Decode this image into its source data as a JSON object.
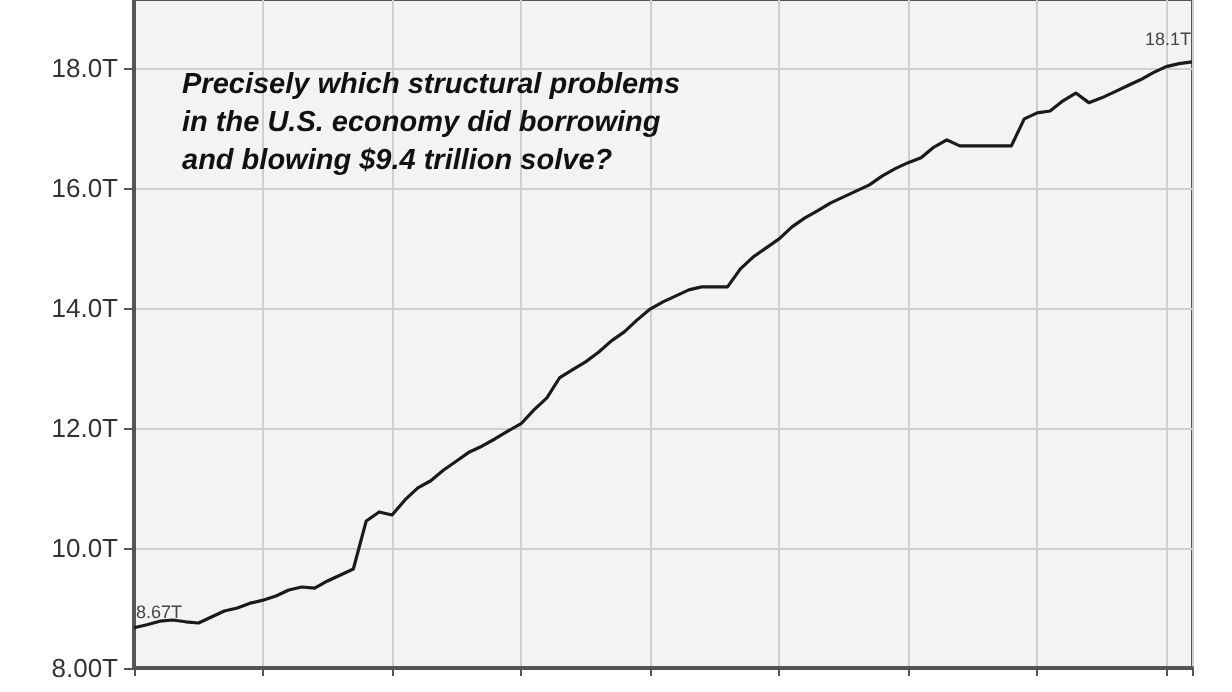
{
  "chart_data": {
    "type": "line",
    "title": "Precisely which structural problems in the U.S. economy did borrowing and blowing $9.4 trillion solve?",
    "categories": [
      null,
      null,
      null,
      null,
      null,
      null,
      null,
      null,
      null,
      null,
      null,
      null,
      null,
      null,
      null,
      null,
      null,
      null,
      null,
      null,
      null,
      null,
      null,
      null,
      null,
      null,
      null,
      null,
      null,
      null,
      null,
      null,
      null,
      null,
      null,
      null,
      null,
      null,
      null,
      null,
      null,
      null,
      null,
      null,
      null,
      null,
      null,
      null,
      null,
      null,
      null,
      null,
      null,
      null,
      null,
      null,
      null,
      null,
      null,
      null,
      null,
      null,
      null,
      null,
      null,
      null,
      null,
      null,
      null,
      null,
      null,
      null,
      null,
      null,
      null,
      null,
      null,
      null,
      null,
      null,
      null,
      null,
      null
    ],
    "values": [
      8.67,
      8.72,
      8.78,
      8.8,
      8.77,
      8.75,
      8.85,
      8.95,
      9.0,
      9.08,
      9.13,
      9.2,
      9.3,
      9.35,
      9.33,
      9.45,
      9.55,
      9.65,
      10.45,
      10.6,
      10.55,
      10.8,
      11.0,
      11.12,
      11.3,
      11.45,
      11.6,
      11.7,
      11.82,
      11.95,
      12.07,
      12.3,
      12.5,
      12.84,
      12.97,
      13.1,
      13.26,
      13.45,
      13.6,
      13.8,
      13.98,
      14.1,
      14.2,
      14.3,
      14.35,
      14.35,
      14.35,
      14.65,
      14.85,
      15.0,
      15.15,
      15.35,
      15.5,
      15.62,
      15.75,
      15.85,
      15.95,
      16.05,
      16.2,
      16.32,
      16.42,
      16.5,
      16.68,
      16.8,
      16.7,
      16.7,
      16.7,
      16.7,
      16.7,
      17.15,
      17.25,
      17.28,
      17.45,
      17.58,
      17.42,
      17.5,
      17.6,
      17.7,
      17.8,
      17.92,
      18.02,
      18.07,
      18.1
    ],
    "value_labels": [
      "8.67T",
      null,
      null,
      null,
      null,
      null,
      null,
      null,
      null,
      null,
      null,
      null,
      null,
      null,
      null,
      null,
      null,
      null,
      null,
      null,
      null,
      null,
      null,
      null,
      null,
      null,
      null,
      null,
      null,
      null,
      null,
      null,
      null,
      null,
      null,
      null,
      null,
      null,
      null,
      null,
      null,
      null,
      null,
      null,
      null,
      null,
      null,
      null,
      null,
      null,
      null,
      null,
      null,
      null,
      null,
      null,
      null,
      null,
      null,
      null,
      null,
      null,
      null,
      null,
      null,
      null,
      null,
      null,
      null,
      null,
      null,
      null,
      null,
      null,
      null,
      null,
      null,
      null,
      null,
      null,
      null,
      null,
      "18.1T"
    ],
    "color": "#1a1a1a",
    "ylim": [
      8,
      19.13
    ],
    "yticks": [
      {
        "value": 8,
        "label": "8.00T"
      },
      {
        "value": 10,
        "label": "10.0T"
      },
      {
        "value": 12,
        "label": "12.0T"
      },
      {
        "value": 14,
        "label": "14.0T"
      },
      {
        "value": 16,
        "label": "16.0T"
      },
      {
        "value": 18,
        "label": "18.0T"
      }
    ],
    "grid": true,
    "tick_labels": "y"
  }
}
